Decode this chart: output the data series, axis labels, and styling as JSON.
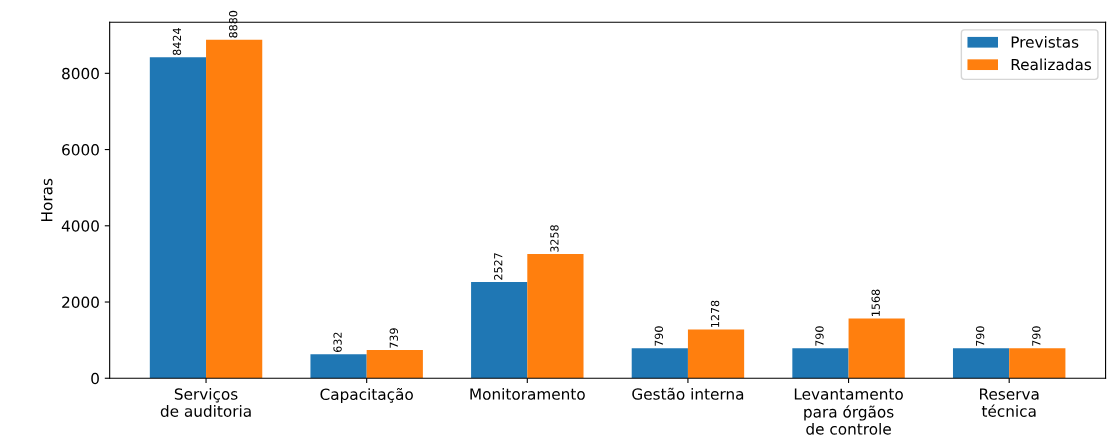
{
  "chart_data": {
    "type": "bar",
    "ylabel": "Horas",
    "categories": [
      "Serviços\nde auditoria",
      "Capacitação",
      "Monitoramento",
      "Gestão interna",
      "Levantamento\npara órgãos\nde controle",
      "Reserva\ntécnica"
    ],
    "series": [
      {
        "name": "Previstas",
        "color": "#1f77b4",
        "values": [
          8424,
          632,
          2527,
          790,
          790,
          790
        ]
      },
      {
        "name": "Realizadas",
        "color": "#ff7f0e",
        "values": [
          8880,
          739,
          3258,
          1278,
          1568,
          790
        ]
      }
    ],
    "ylim": [
      0,
      9340
    ],
    "yticks": [
      0,
      2000,
      4000,
      6000,
      8000
    ],
    "data_labels": true,
    "legend": "top right",
    "grid": false
  }
}
